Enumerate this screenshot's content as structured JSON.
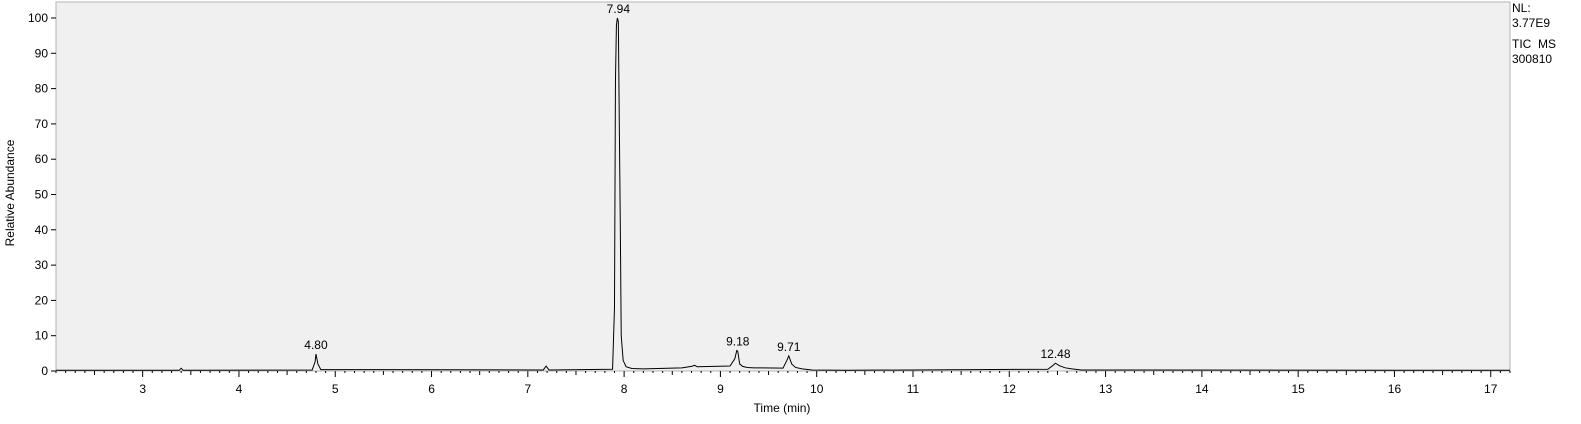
{
  "chart_data": {
    "type": "line",
    "xlabel": "Time (min)",
    "ylabel": "Relative Abundance",
    "xlim": [
      2.1,
      17.2
    ],
    "ylim": [
      0,
      100
    ],
    "x_ticks": [
      "3",
      "4",
      "5",
      "6",
      "7",
      "8",
      "9",
      "10",
      "11",
      "12",
      "13",
      "14",
      "15",
      "16",
      "17"
    ],
    "y_ticks": [
      "0",
      "10",
      "20",
      "30",
      "40",
      "50",
      "60",
      "70",
      "80",
      "90",
      "100"
    ],
    "grid": false,
    "plot_background": "#f0f0f0",
    "line_color": "#000000",
    "series": [
      {
        "x": [
          2.1,
          3.38,
          3.4,
          3.42,
          4.76,
          4.79,
          4.8,
          4.82,
          4.85,
          7.16,
          7.19,
          7.22,
          7.88,
          7.9,
          7.91,
          7.92,
          7.93,
          7.94,
          7.95,
          7.96,
          7.97,
          7.99,
          8.02,
          8.08,
          8.2,
          8.6,
          8.7,
          8.73,
          8.76,
          9.1,
          9.15,
          9.17,
          9.18,
          9.2,
          9.23,
          9.28,
          9.35,
          9.65,
          9.69,
          9.71,
          9.74,
          9.78,
          9.85,
          9.95,
          10.3,
          12.4,
          12.45,
          12.48,
          12.52,
          12.58,
          12.65,
          12.75,
          17.2
        ],
        "y": [
          0.2,
          0.2,
          0.8,
          0.2,
          0.3,
          2.5,
          4.8,
          2.0,
          0.4,
          0.3,
          1.4,
          0.3,
          0.5,
          18.0,
          82.0,
          98.0,
          100.0,
          99.0,
          70.0,
          42.0,
          10.0,
          3.0,
          1.2,
          0.7,
          0.6,
          0.9,
          1.3,
          1.6,
          1.2,
          1.4,
          3.5,
          5.8,
          5.6,
          2.0,
          1.3,
          1.0,
          0.9,
          0.8,
          3.0,
          4.3,
          2.0,
          1.0,
          0.6,
          0.3,
          0.2,
          0.5,
          1.5,
          2.2,
          1.5,
          0.9,
          0.6,
          0.3,
          0.2
        ]
      }
    ],
    "peak_labels": [
      {
        "x": 4.8,
        "y": 4.8,
        "label": "4.80"
      },
      {
        "x": 7.94,
        "y": 100,
        "label": "7.94"
      },
      {
        "x": 9.18,
        "y": 5.8,
        "label": "9.18"
      },
      {
        "x": 9.71,
        "y": 4.3,
        "label": "9.71"
      },
      {
        "x": 12.48,
        "y": 2.2,
        "label": "12.48"
      }
    ]
  },
  "info": {
    "nl_label": "NL:",
    "nl_value": "3.77E9",
    "trace": "TIC  MS",
    "sample": "300810"
  }
}
